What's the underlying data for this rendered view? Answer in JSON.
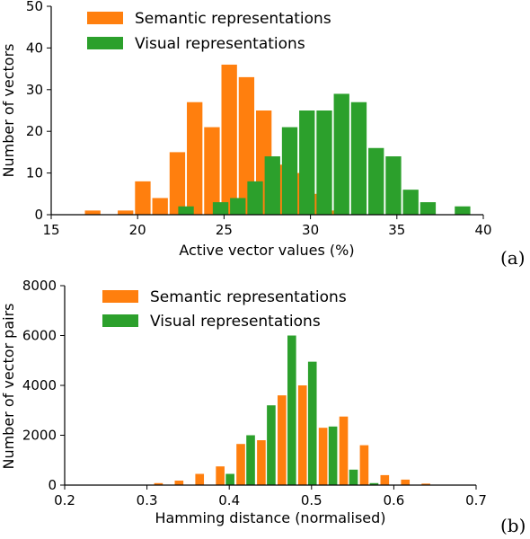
{
  "colors": {
    "semantic": "#ff7f0e",
    "visual": "#2ca02c"
  },
  "chart_data": [
    {
      "type": "bar",
      "panel_tag": "(a)",
      "xlabel": "Active vector values (%)",
      "ylabel": "Number of vectors",
      "xlim": [
        15,
        40
      ],
      "ylim": [
        0,
        50
      ],
      "xticks": [
        15,
        20,
        25,
        30,
        35,
        40
      ],
      "yticks": [
        0,
        10,
        20,
        30,
        40,
        50
      ],
      "bin_width": 0.9,
      "legend_position": "top-left",
      "series": [
        {
          "name": "Semantic representations",
          "color_key": "semantic",
          "points": [
            {
              "x": 17.4,
              "y": 1
            },
            {
              "x": 19.3,
              "y": 1
            },
            {
              "x": 20.3,
              "y": 8
            },
            {
              "x": 21.3,
              "y": 4
            },
            {
              "x": 22.3,
              "y": 15
            },
            {
              "x": 23.3,
              "y": 27
            },
            {
              "x": 24.3,
              "y": 21
            },
            {
              "x": 25.3,
              "y": 36
            },
            {
              "x": 26.3,
              "y": 33
            },
            {
              "x": 27.3,
              "y": 25
            },
            {
              "x": 28.3,
              "y": 12
            },
            {
              "x": 29.3,
              "y": 10
            },
            {
              "x": 30.3,
              "y": 5
            },
            {
              "x": 31.3,
              "y": 1
            }
          ]
        },
        {
          "name": "Visual representations",
          "color_key": "visual",
          "points": [
            {
              "x": 22.8,
              "y": 2
            },
            {
              "x": 24.8,
              "y": 3
            },
            {
              "x": 25.8,
              "y": 4
            },
            {
              "x": 26.8,
              "y": 8
            },
            {
              "x": 27.8,
              "y": 14
            },
            {
              "x": 28.8,
              "y": 21
            },
            {
              "x": 29.8,
              "y": 25
            },
            {
              "x": 30.8,
              "y": 25
            },
            {
              "x": 31.8,
              "y": 29
            },
            {
              "x": 32.8,
              "y": 27
            },
            {
              "x": 33.8,
              "y": 16
            },
            {
              "x": 34.8,
              "y": 14
            },
            {
              "x": 35.8,
              "y": 6
            },
            {
              "x": 36.8,
              "y": 3
            },
            {
              "x": 38.8,
              "y": 2
            }
          ]
        }
      ]
    },
    {
      "type": "bar",
      "panel_tag": "(b)",
      "xlabel": "Hamming distance (normalised)",
      "ylabel": "Number of vector pairs",
      "xlim": [
        0.2,
        0.7
      ],
      "ylim": [
        0,
        8000
      ],
      "xticks": [
        0.2,
        0.3,
        0.4,
        0.5,
        0.6,
        0.7
      ],
      "yticks": [
        0,
        2000,
        4000,
        6000,
        8000
      ],
      "bin_width": 0.0105,
      "legend_position": "top-left",
      "series": [
        {
          "name": "Semantic representations",
          "color_key": "semantic",
          "points": [
            {
              "x": 0.314,
              "y": 80
            },
            {
              "x": 0.339,
              "y": 180
            },
            {
              "x": 0.364,
              "y": 450
            },
            {
              "x": 0.389,
              "y": 750
            },
            {
              "x": 0.414,
              "y": 1650
            },
            {
              "x": 0.439,
              "y": 1800
            },
            {
              "x": 0.464,
              "y": 3600
            },
            {
              "x": 0.489,
              "y": 4000
            },
            {
              "x": 0.514,
              "y": 2300
            },
            {
              "x": 0.539,
              "y": 2750
            },
            {
              "x": 0.564,
              "y": 1600
            },
            {
              "x": 0.589,
              "y": 400
            },
            {
              "x": 0.614,
              "y": 220
            },
            {
              "x": 0.639,
              "y": 60
            }
          ]
        },
        {
          "name": "Visual representations",
          "color_key": "visual",
          "points": [
            {
              "x": 0.401,
              "y": 450
            },
            {
              "x": 0.426,
              "y": 2000
            },
            {
              "x": 0.451,
              "y": 3200
            },
            {
              "x": 0.476,
              "y": 6000
            },
            {
              "x": 0.501,
              "y": 4950
            },
            {
              "x": 0.526,
              "y": 2350
            },
            {
              "x": 0.551,
              "y": 620
            },
            {
              "x": 0.576,
              "y": 80
            }
          ]
        }
      ]
    }
  ]
}
